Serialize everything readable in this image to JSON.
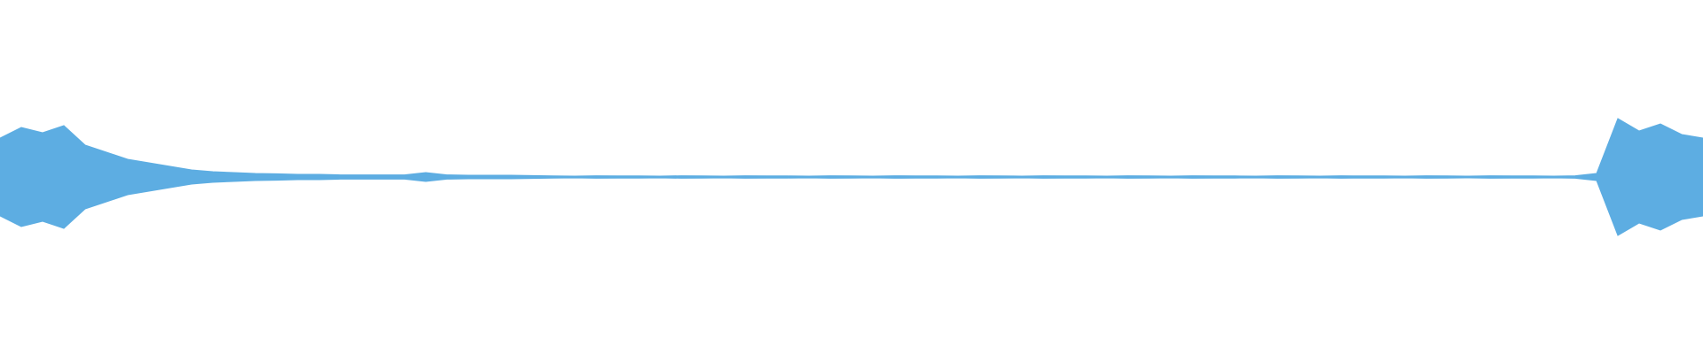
{
  "chart_data": {
    "type": "waveform",
    "color": "#5dade2",
    "xlim": [
      0,
      160
    ],
    "ylim": [
      -1,
      1
    ],
    "x": [
      0,
      2,
      4,
      6,
      8,
      10,
      12,
      14,
      16,
      18,
      20,
      22,
      24,
      26,
      28,
      30,
      32,
      34,
      36,
      38,
      40,
      42,
      44,
      46,
      48,
      50,
      52,
      54,
      56,
      58,
      60,
      62,
      64,
      66,
      68,
      70,
      72,
      74,
      76,
      78,
      80,
      82,
      84,
      86,
      88,
      90,
      92,
      94,
      96,
      98,
      100,
      102,
      104,
      106,
      108,
      110,
      112,
      114,
      116,
      118,
      120,
      122,
      124,
      126,
      128,
      130,
      132,
      134,
      136,
      138,
      140,
      142,
      144,
      146,
      148,
      150,
      152,
      154,
      156,
      158,
      160
    ],
    "values": [
      0.22,
      0.28,
      0.25,
      0.29,
      0.18,
      0.14,
      0.1,
      0.08,
      0.06,
      0.04,
      0.03,
      0.025,
      0.02,
      0.018,
      0.015,
      0.015,
      0.012,
      0.012,
      0.012,
      0.012,
      0.025,
      0.012,
      0.01,
      0.01,
      0.01,
      0.008,
      0.006,
      0.005,
      0.007,
      0.006,
      0.006,
      0.005,
      0.007,
      0.006,
      0.005,
      0.007,
      0.006,
      0.006,
      0.005,
      0.007,
      0.006,
      0.005,
      0.007,
      0.006,
      0.006,
      0.005,
      0.007,
      0.006,
      0.005,
      0.007,
      0.006,
      0.006,
      0.005,
      0.007,
      0.006,
      0.005,
      0.007,
      0.006,
      0.006,
      0.005,
      0.007,
      0.006,
      0.005,
      0.007,
      0.006,
      0.006,
      0.005,
      0.007,
      0.006,
      0.005,
      0.007,
      0.006,
      0.006,
      0.005,
      0.007,
      0.02,
      0.33,
      0.26,
      0.3,
      0.24,
      0.22
    ]
  }
}
